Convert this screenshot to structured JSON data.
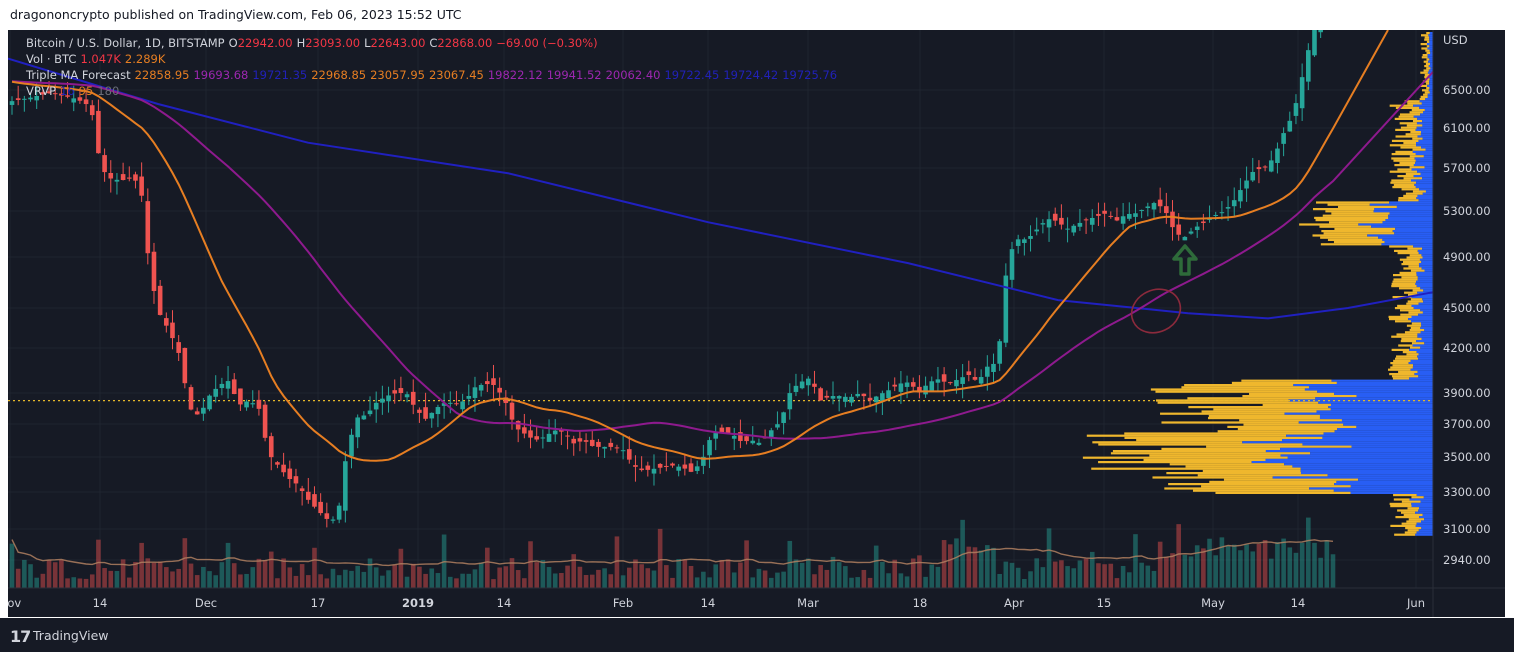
{
  "publisher_line": "dragononcrypto published on TradingView.com, Feb 06, 2023 15:52 UTC",
  "footer": {
    "brand": "TradingView",
    "logo_glyph": "17"
  },
  "legend": {
    "main": {
      "title": "Bitcoin / U.S. Dollar, 1D, BITSTAMP",
      "o_label": "O",
      "o": "22942.00",
      "h_label": "H",
      "h": "23093.00",
      "l_label": "L",
      "l": "22643.00",
      "c_label": "C",
      "c": "22868.00",
      "chg": "−69.00 (−0.30%)"
    },
    "vol": {
      "title": "Vol · BTC",
      "v1": "1.047K",
      "v2": "2.289K"
    },
    "ma": {
      "title": "Triple MA Forecast",
      "orange": [
        "22858.95",
        "22968.85",
        "23057.95",
        "23067.45"
      ],
      "purple": [
        "19693.68",
        "19822.12",
        "19941.52",
        "20062.40"
      ],
      "blue": [
        "19721.35",
        "19722.45",
        "19724.42",
        "19725.76"
      ]
    },
    "vrvp": {
      "title": "VRVP",
      "v1": "16",
      "v2": "95",
      "v3": "180"
    }
  },
  "colors": {
    "up": "#26a69a",
    "down": "#ef5350",
    "ma_orange": "#e67e22",
    "ma_purple": "#8e1a8e",
    "ma_blue": "#2020c0",
    "vp_yellow": "#fbc02d",
    "vp_blue": "#2962ff",
    "poc_line": "#e5b82a",
    "arrow": "#2e6b3a",
    "circle": "#8b2a3c"
  },
  "chart_data": {
    "type": "candlestick",
    "y_axis": {
      "label": "USD",
      "ticks": [
        6500,
        6100,
        5700,
        5300,
        4900,
        4500,
        4200,
        3900,
        3700,
        3500,
        3300,
        3100,
        2940
      ],
      "tick_labels": [
        "6500.00",
        "6100.00",
        "5700.00",
        "5300.00",
        "4900.00",
        "4500.00",
        "4200.00",
        "3900.00",
        "3700.00",
        "3500.00",
        "3300.00",
        "3100.00",
        "2940.00"
      ],
      "ylim": [
        2800,
        7000
      ],
      "scale": "log"
    },
    "x_axis": {
      "ticks": [
        "Nov",
        "14",
        "Dec",
        "17",
        "2019",
        "14",
        "Feb",
        "14",
        "Mar",
        "18",
        "Apr",
        "15",
        "May",
        "14",
        "Jun"
      ]
    },
    "price_path": [
      6380,
      6400,
      6420,
      6450,
      6470,
      6440,
      6420,
      6380,
      6320,
      5700,
      5600,
      5580,
      5600,
      5560,
      4750,
      4450,
      4320,
      4150,
      3800,
      3750,
      3880,
      3950,
      3980,
      3820,
      3850,
      3810,
      3520,
      3450,
      3380,
      3340,
      3260,
      3200,
      3150,
      3150,
      3550,
      3740,
      3760,
      3840,
      3880,
      3900,
      3900,
      3790,
      3730,
      3800,
      3840,
      3830,
      3850,
      3940,
      3960,
      3950,
      3850,
      3680,
      3640,
      3600,
      3620,
      3660,
      3650,
      3580,
      3600,
      3560,
      3560,
      3560,
      3540,
      3450,
      3420,
      3430,
      3440,
      3450,
      3440,
      3410,
      3480,
      3640,
      3650,
      3640,
      3590,
      3600,
      3580,
      3660,
      3720,
      3920,
      3970,
      4000,
      3850,
      3880,
      3880,
      3870,
      3900,
      3850,
      3890,
      3920,
      3960,
      3970,
      3900,
      3970,
      3990,
      3960,
      3990,
      4020,
      3970,
      4080,
      4100,
      4900,
      5050,
      5050,
      5140,
      5230,
      5210,
      5140,
      5180,
      5220,
      5250,
      5280,
      5210,
      5270,
      5280,
      5330,
      5380,
      5300,
      5100,
      5070,
      5150,
      5200,
      5260,
      5300,
      5400,
      5550,
      5680,
      5700,
      5800,
      6050,
      6250,
      6700,
      7200,
      7400,
      7500
    ]
  },
  "annotations": {
    "arrow_label": "",
    "circle_label": ""
  }
}
